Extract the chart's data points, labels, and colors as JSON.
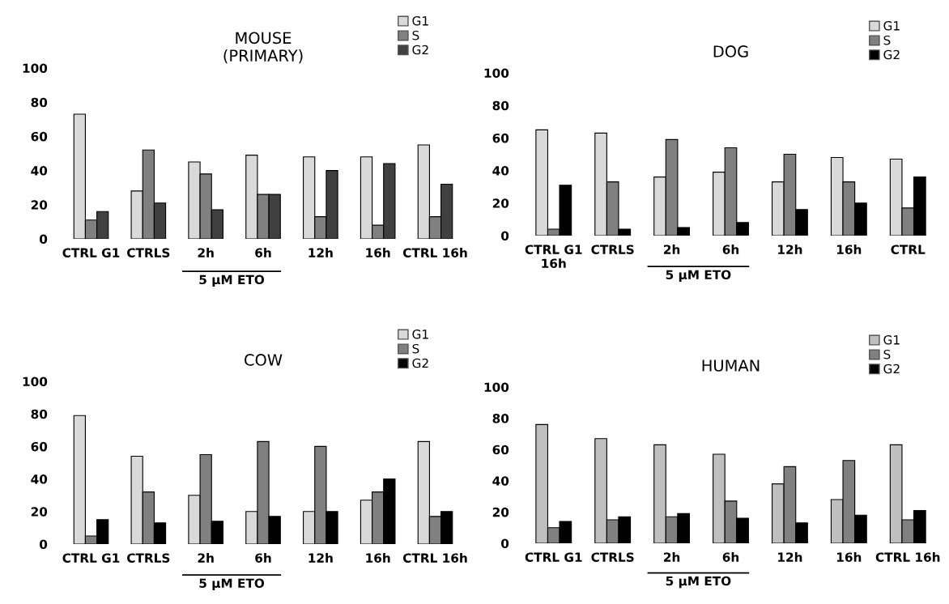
{
  "chart_data": [
    {
      "type": "bar",
      "title": "MOUSE\n(PRIMARY)",
      "categories": [
        "CTRL G1",
        "CTRLS",
        "2h",
        "6h",
        "12h",
        "16h",
        "CTRL 16h"
      ],
      "annotations": [
        "5 µM ETO"
      ],
      "ylim": [
        0,
        100
      ],
      "yticks": [
        0,
        20,
        40,
        60,
        80,
        100
      ],
      "grid": false,
      "legend": "top right",
      "series": [
        {
          "name": "G1",
          "color": "#d9d9d9",
          "values": [
            73,
            28,
            45,
            49,
            48,
            48,
            55
          ]
        },
        {
          "name": "S",
          "color": "#808080",
          "values": [
            11,
            52,
            38,
            26,
            13,
            8,
            13
          ]
        },
        {
          "name": "G2",
          "color": "#404040",
          "values": [
            16,
            21,
            17,
            26,
            40,
            44,
            32
          ]
        }
      ]
    },
    {
      "type": "bar",
      "title": "DOG",
      "categories": [
        "CTRL G1\n16h",
        "CTRLS",
        "2h",
        "6h",
        "12h",
        "16h",
        "CTRL"
      ],
      "annotations": [
        "5 µM ETO"
      ],
      "ylim": [
        0,
        100
      ],
      "yticks": [
        0,
        20,
        40,
        60,
        80,
        100
      ],
      "grid": false,
      "legend": "top right",
      "series": [
        {
          "name": "G1",
          "color": "#d9d9d9",
          "values": [
            65,
            63,
            36,
            39,
            33,
            48,
            47
          ]
        },
        {
          "name": "S",
          "color": "#808080",
          "values": [
            4,
            33,
            59,
            54,
            50,
            33,
            17
          ]
        },
        {
          "name": "G2",
          "color": "#000000",
          "values": [
            31,
            4,
            5,
            8,
            16,
            20,
            36
          ]
        }
      ]
    },
    {
      "type": "bar",
      "title": "COW",
      "categories": [
        "CTRL G1",
        "CTRLS",
        "2h",
        "6h",
        "12h",
        "16h",
        "CTRL 16h"
      ],
      "annotations": [
        "5 µM ETO"
      ],
      "ylim": [
        0,
        100
      ],
      "yticks": [
        0,
        20,
        40,
        60,
        80,
        100
      ],
      "grid": false,
      "legend": "top right",
      "series": [
        {
          "name": "G1",
          "color": "#d9d9d9",
          "values": [
            79,
            54,
            30,
            20,
            20,
            27,
            63
          ]
        },
        {
          "name": "S",
          "color": "#808080",
          "values": [
            5,
            32,
            55,
            63,
            60,
            32,
            17
          ]
        },
        {
          "name": "G2",
          "color": "#000000",
          "values": [
            15,
            13,
            14,
            17,
            20,
            40,
            20
          ]
        }
      ]
    },
    {
      "type": "bar",
      "title": "HUMAN",
      "categories": [
        "CTRL G1",
        "CTRLS",
        "2h",
        "6h",
        "12h",
        "16h",
        "CTRL 16h"
      ],
      "annotations": [
        "5 µM ETO"
      ],
      "ylim": [
        0,
        100
      ],
      "yticks": [
        0,
        20,
        40,
        60,
        80,
        100
      ],
      "grid": false,
      "legend": "top right",
      "series": [
        {
          "name": "G1",
          "color": "#bfbfbf",
          "values": [
            76,
            67,
            63,
            57,
            38,
            28,
            63
          ]
        },
        {
          "name": "S",
          "color": "#808080",
          "values": [
            10,
            15,
            17,
            27,
            49,
            53,
            15
          ]
        },
        {
          "name": "G2",
          "color": "#000000",
          "values": [
            14,
            17,
            19,
            16,
            13,
            18,
            21
          ]
        }
      ]
    }
  ]
}
